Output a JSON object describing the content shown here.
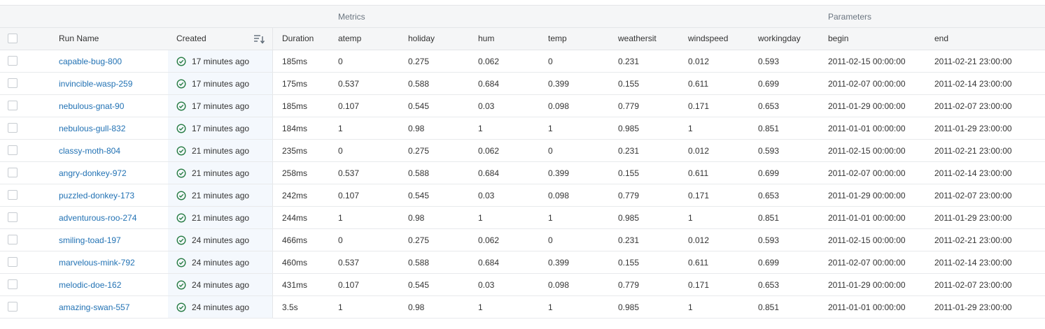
{
  "groups": {
    "metrics": "Metrics",
    "parameters": "Parameters"
  },
  "columns": {
    "run_name": "Run Name",
    "created": "Created",
    "duration": "Duration",
    "atemp": "atemp",
    "holiday": "holiday",
    "hum": "hum",
    "temp": "temp",
    "weathersit": "weathersit",
    "windspeed": "windspeed",
    "workingday": "workingday",
    "begin": "begin",
    "end": "end"
  },
  "icons": {
    "status": "check-circle-icon",
    "sort": "sort-descending-icon"
  },
  "colors": {
    "link": "#2272b4",
    "success": "#277c43",
    "header_bg": "#f5f6f7",
    "created_bg": "#f4f8fd"
  },
  "rows": [
    {
      "run_name": "capable-bug-800",
      "created": "17 minutes ago",
      "duration": "185ms",
      "atemp": "0",
      "holiday": "0.275",
      "hum": "0.062",
      "temp": "0",
      "weathersit": "0.231",
      "windspeed": "0.012",
      "workingday": "0.593",
      "begin": "2011-02-15 00:00:00",
      "end": "2011-02-21 23:00:00"
    },
    {
      "run_name": "invincible-wasp-259",
      "created": "17 minutes ago",
      "duration": "175ms",
      "atemp": "0.537",
      "holiday": "0.588",
      "hum": "0.684",
      "temp": "0.399",
      "weathersit": "0.155",
      "windspeed": "0.611",
      "workingday": "0.699",
      "begin": "2011-02-07 00:00:00",
      "end": "2011-02-14 23:00:00"
    },
    {
      "run_name": "nebulous-gnat-90",
      "created": "17 minutes ago",
      "duration": "185ms",
      "atemp": "0.107",
      "holiday": "0.545",
      "hum": "0.03",
      "temp": "0.098",
      "weathersit": "0.779",
      "windspeed": "0.171",
      "workingday": "0.653",
      "begin": "2011-01-29 00:00:00",
      "end": "2011-02-07 23:00:00"
    },
    {
      "run_name": "nebulous-gull-832",
      "created": "17 minutes ago",
      "duration": "184ms",
      "atemp": "1",
      "holiday": "0.98",
      "hum": "1",
      "temp": "1",
      "weathersit": "0.985",
      "windspeed": "1",
      "workingday": "0.851",
      "begin": "2011-01-01 00:00:00",
      "end": "2011-01-29 23:00:00"
    },
    {
      "run_name": "classy-moth-804",
      "created": "21 minutes ago",
      "duration": "235ms",
      "atemp": "0",
      "holiday": "0.275",
      "hum": "0.062",
      "temp": "0",
      "weathersit": "0.231",
      "windspeed": "0.012",
      "workingday": "0.593",
      "begin": "2011-02-15 00:00:00",
      "end": "2011-02-21 23:00:00"
    },
    {
      "run_name": "angry-donkey-972",
      "created": "21 minutes ago",
      "duration": "258ms",
      "atemp": "0.537",
      "holiday": "0.588",
      "hum": "0.684",
      "temp": "0.399",
      "weathersit": "0.155",
      "windspeed": "0.611",
      "workingday": "0.699",
      "begin": "2011-02-07 00:00:00",
      "end": "2011-02-14 23:00:00"
    },
    {
      "run_name": "puzzled-donkey-173",
      "created": "21 minutes ago",
      "duration": "242ms",
      "atemp": "0.107",
      "holiday": "0.545",
      "hum": "0.03",
      "temp": "0.098",
      "weathersit": "0.779",
      "windspeed": "0.171",
      "workingday": "0.653",
      "begin": "2011-01-29 00:00:00",
      "end": "2011-02-07 23:00:00"
    },
    {
      "run_name": "adventurous-roo-274",
      "created": "21 minutes ago",
      "duration": "244ms",
      "atemp": "1",
      "holiday": "0.98",
      "hum": "1",
      "temp": "1",
      "weathersit": "0.985",
      "windspeed": "1",
      "workingday": "0.851",
      "begin": "2011-01-01 00:00:00",
      "end": "2011-01-29 23:00:00"
    },
    {
      "run_name": "smiling-toad-197",
      "created": "24 minutes ago",
      "duration": "466ms",
      "atemp": "0",
      "holiday": "0.275",
      "hum": "0.062",
      "temp": "0",
      "weathersit": "0.231",
      "windspeed": "0.012",
      "workingday": "0.593",
      "begin": "2011-02-15 00:00:00",
      "end": "2011-02-21 23:00:00"
    },
    {
      "run_name": "marvelous-mink-792",
      "created": "24 minutes ago",
      "duration": "460ms",
      "atemp": "0.537",
      "holiday": "0.588",
      "hum": "0.684",
      "temp": "0.399",
      "weathersit": "0.155",
      "windspeed": "0.611",
      "workingday": "0.699",
      "begin": "2011-02-07 00:00:00",
      "end": "2011-02-14 23:00:00"
    },
    {
      "run_name": "melodic-doe-162",
      "created": "24 minutes ago",
      "duration": "431ms",
      "atemp": "0.107",
      "holiday": "0.545",
      "hum": "0.03",
      "temp": "0.098",
      "weathersit": "0.779",
      "windspeed": "0.171",
      "workingday": "0.653",
      "begin": "2011-01-29 00:00:00",
      "end": "2011-02-07 23:00:00"
    },
    {
      "run_name": "amazing-swan-557",
      "created": "24 minutes ago",
      "duration": "3.5s",
      "atemp": "1",
      "holiday": "0.98",
      "hum": "1",
      "temp": "1",
      "weathersit": "0.985",
      "windspeed": "1",
      "workingday": "0.851",
      "begin": "2011-01-01 00:00:00",
      "end": "2011-01-29 23:00:00"
    }
  ]
}
